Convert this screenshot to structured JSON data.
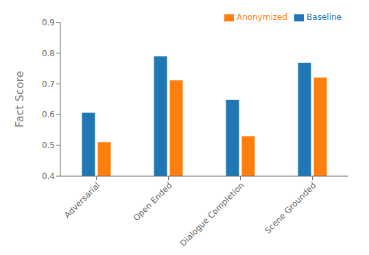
{
  "chart_data": {
    "type": "bar",
    "categories": [
      "Adversarial",
      "Open Ended",
      "Dialogue Completion",
      "Scene Grounded"
    ],
    "series": [
      {
        "name": "Baseline",
        "color": "#1f77b4",
        "values": [
          0.606,
          0.789,
          0.648,
          0.768
        ]
      },
      {
        "name": "Anonymized",
        "color": "#ff7f0e",
        "values": [
          0.511,
          0.711,
          0.53,
          0.72
        ]
      }
    ],
    "ylabel": "Fact Score",
    "ylim": [
      0.4,
      0.9
    ],
    "yticks": [
      0.4,
      0.5,
      0.6,
      0.7,
      0.8,
      0.9
    ],
    "legend": "upper right"
  }
}
